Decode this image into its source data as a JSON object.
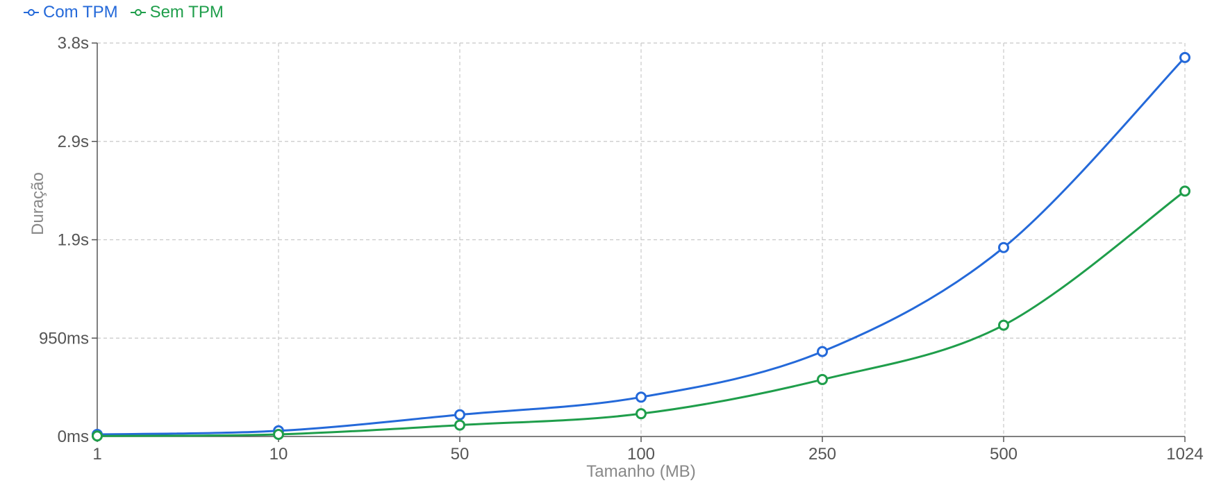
{
  "chart_data": {
    "type": "line",
    "xlabel": "Tamanho (MB)",
    "ylabel": "Duração",
    "categories": [
      "1",
      "10",
      "50",
      "100",
      "250",
      "500",
      "1024"
    ],
    "y_ticks": [
      "0ms",
      "950ms",
      "1.9s",
      "2.9s",
      "3.8s"
    ],
    "y_tick_values": [
      0,
      950,
      1900,
      2850,
      3800
    ],
    "ylim": [
      0,
      3800
    ],
    "y_unit": "ms",
    "grid": true,
    "legend_position": "top-left",
    "series": [
      {
        "name": "Com TPM",
        "color": "#2469d9",
        "values": [
          20,
          55,
          210,
          380,
          820,
          1825,
          3660
        ]
      },
      {
        "name": "Sem TPM",
        "color": "#1f9e4b",
        "values": [
          5,
          20,
          110,
          220,
          550,
          1075,
          2370
        ]
      }
    ]
  }
}
